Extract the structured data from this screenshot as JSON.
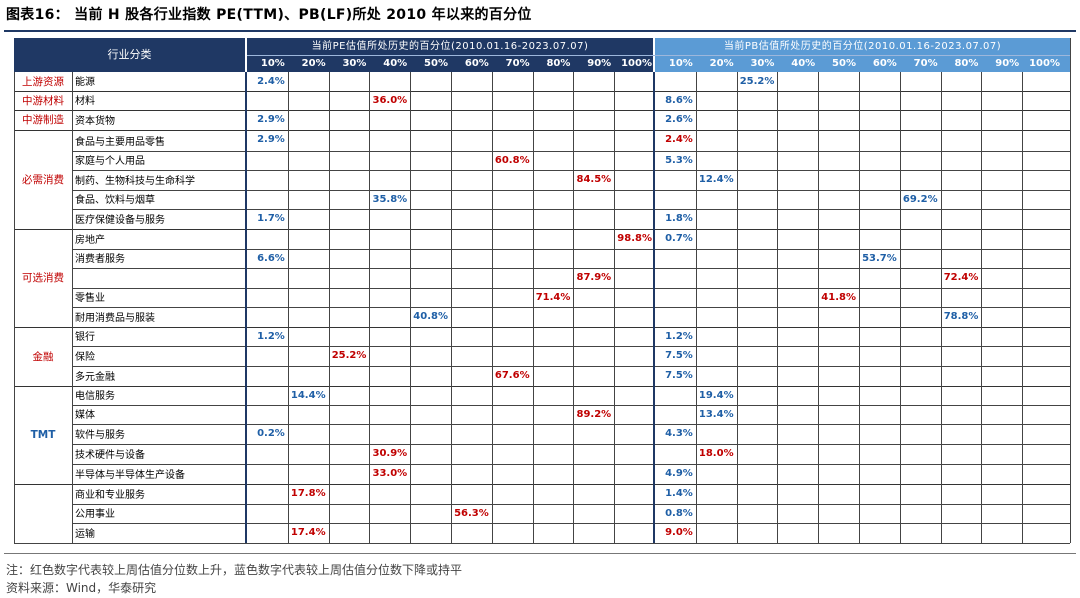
{
  "title": "图表16：  当前 H 股各行业指数 PE(TTM)、PB(LF)所处 2010 年以来的百分位",
  "header": {
    "category": "行业分类",
    "pe_title": "当前PE估值所处历史的百分位(2010.01.16-2023.07.07)",
    "pb_title": "当前PB估值所处历史的百分位(2010.01.16-2023.07.07)",
    "percentiles": [
      "10%",
      "20%",
      "30%",
      "40%",
      "50%",
      "60%",
      "70%",
      "80%",
      "90%",
      "100%"
    ]
  },
  "colors": {
    "header_bg": "#1f3864",
    "pb_header_bg": "#5b9bd5",
    "red": "#c00000",
    "blue": "#1f5fa6",
    "group_red": "#c00000",
    "group_blue": "#1f5fa6"
  },
  "groups": [
    {
      "name": "上游资源",
      "color": "red"
    },
    {
      "name": "中游材料",
      "color": "red"
    },
    {
      "name": "中游制造",
      "color": "red"
    },
    {
      "name": "必需消费",
      "color": "red"
    },
    {
      "name": "可选消费",
      "color": "red"
    },
    {
      "name": "金融",
      "color": "red"
    },
    {
      "name": "TMT",
      "color": "blue"
    }
  ],
  "rows": [
    {
      "industry": "能源",
      "pe": "2.4%",
      "pe_color": "blue",
      "pe_bin": 0,
      "pb": "25.2%",
      "pb_color": "blue",
      "pb_bin": 2
    },
    {
      "industry": "材料",
      "pe": "36.0%",
      "pe_color": "red",
      "pe_bin": 3,
      "pb": "8.6%",
      "pb_color": "blue",
      "pb_bin": 0
    },
    {
      "industry": "资本货物",
      "pe": "2.9%",
      "pe_color": "blue",
      "pe_bin": 0,
      "pb": "2.6%",
      "pb_color": "blue",
      "pb_bin": 0
    },
    {
      "industry": "食品与主要用品零售",
      "pe": "2.9%",
      "pe_color": "blue",
      "pe_bin": 0,
      "pb": "2.4%",
      "pb_color": "red",
      "pb_bin": 0
    },
    {
      "industry": "家庭与个人用品",
      "pe": "60.8%",
      "pe_color": "red",
      "pe_bin": 6,
      "pb": "5.3%",
      "pb_color": "blue",
      "pb_bin": 0
    },
    {
      "industry": "制药、生物科技与生命科学",
      "pe": "84.5%",
      "pe_color": "red",
      "pe_bin": 8,
      "pb": "12.4%",
      "pb_color": "blue",
      "pb_bin": 1
    },
    {
      "industry": "食品、饮料与烟草",
      "pe": "35.8%",
      "pe_color": "blue",
      "pe_bin": 3,
      "pb": "69.2%",
      "pb_color": "blue",
      "pb_bin": 6
    },
    {
      "industry": "医疗保健设备与服务",
      "pe": "1.7%",
      "pe_color": "blue",
      "pe_bin": 0,
      "pb": "1.8%",
      "pb_color": "blue",
      "pb_bin": 0
    },
    {
      "industry": "房地产",
      "pe": "98.8%",
      "pe_color": "red",
      "pe_bin": 9,
      "pb": "0.7%",
      "pb_color": "blue",
      "pb_bin": 0
    },
    {
      "industry": "消费者服务",
      "pe": "6.6%",
      "pe_color": "blue",
      "pe_bin": 0,
      "pb": "53.7%",
      "pb_color": "blue",
      "pb_bin": 5
    },
    {
      "industry": "",
      "pe": "87.9%",
      "pe_color": "red",
      "pe_bin": 8,
      "pb": "72.4%",
      "pb_color": "red",
      "pb_bin": 7
    },
    {
      "industry": "零售业",
      "pe": "71.4%",
      "pe_color": "red",
      "pe_bin": 7,
      "pb": "41.8%",
      "pb_color": "red",
      "pb_bin": 4
    },
    {
      "industry": "耐用消费品与服装",
      "pe": "40.8%",
      "pe_color": "blue",
      "pe_bin": 4,
      "pb": "78.8%",
      "pb_color": "blue",
      "pb_bin": 7
    },
    {
      "industry": "银行",
      "pe": "1.2%",
      "pe_color": "blue",
      "pe_bin": 0,
      "pb": "1.2%",
      "pb_color": "blue",
      "pb_bin": 0
    },
    {
      "industry": "保险",
      "pe": "25.2%",
      "pe_color": "red",
      "pe_bin": 2,
      "pb": "7.5%",
      "pb_color": "blue",
      "pb_bin": 0
    },
    {
      "industry": "多元金融",
      "pe": "67.6%",
      "pe_color": "red",
      "pe_bin": 6,
      "pb": "7.5%",
      "pb_color": "blue",
      "pb_bin": 0
    },
    {
      "industry": "电信服务",
      "pe": "14.4%",
      "pe_color": "blue",
      "pe_bin": 1,
      "pb": "19.4%",
      "pb_color": "blue",
      "pb_bin": 1
    },
    {
      "industry": "媒体",
      "pe": "89.2%",
      "pe_color": "red",
      "pe_bin": 8,
      "pb": "13.4%",
      "pb_color": "blue",
      "pb_bin": 1
    },
    {
      "industry": "软件与服务",
      "pe": "0.2%",
      "pe_color": "blue",
      "pe_bin": 0,
      "pb": "4.3%",
      "pb_color": "blue",
      "pb_bin": 0
    },
    {
      "industry": "技术硬件与设备",
      "pe": "30.9%",
      "pe_color": "red",
      "pe_bin": 3,
      "pb": "18.0%",
      "pb_color": "red",
      "pb_bin": 1
    },
    {
      "industry": "半导体与半导体生产设备",
      "pe": "33.0%",
      "pe_color": "red",
      "pe_bin": 3,
      "pb": "4.9%",
      "pb_color": "blue",
      "pb_bin": 0
    },
    {
      "industry": "商业和专业服务",
      "pe": "17.8%",
      "pe_color": "red",
      "pe_bin": 1,
      "pb": "1.4%",
      "pb_color": "blue",
      "pb_bin": 0
    },
    {
      "industry": "公用事业",
      "pe": "56.3%",
      "pe_color": "red",
      "pe_bin": 5,
      "pb": "0.8%",
      "pb_color": "blue",
      "pb_bin": 0
    },
    {
      "industry": "运输",
      "pe": "17.4%",
      "pe_color": "red",
      "pe_bin": 1,
      "pb": "9.0%",
      "pb_color": "red",
      "pb_bin": 0
    }
  ],
  "footer": {
    "note": "注：红色数字代表较上周估值分位数上升，蓝色数字代表较上周估值分位数下降或持平",
    "source": "资料来源：Wind，华泰研究"
  }
}
